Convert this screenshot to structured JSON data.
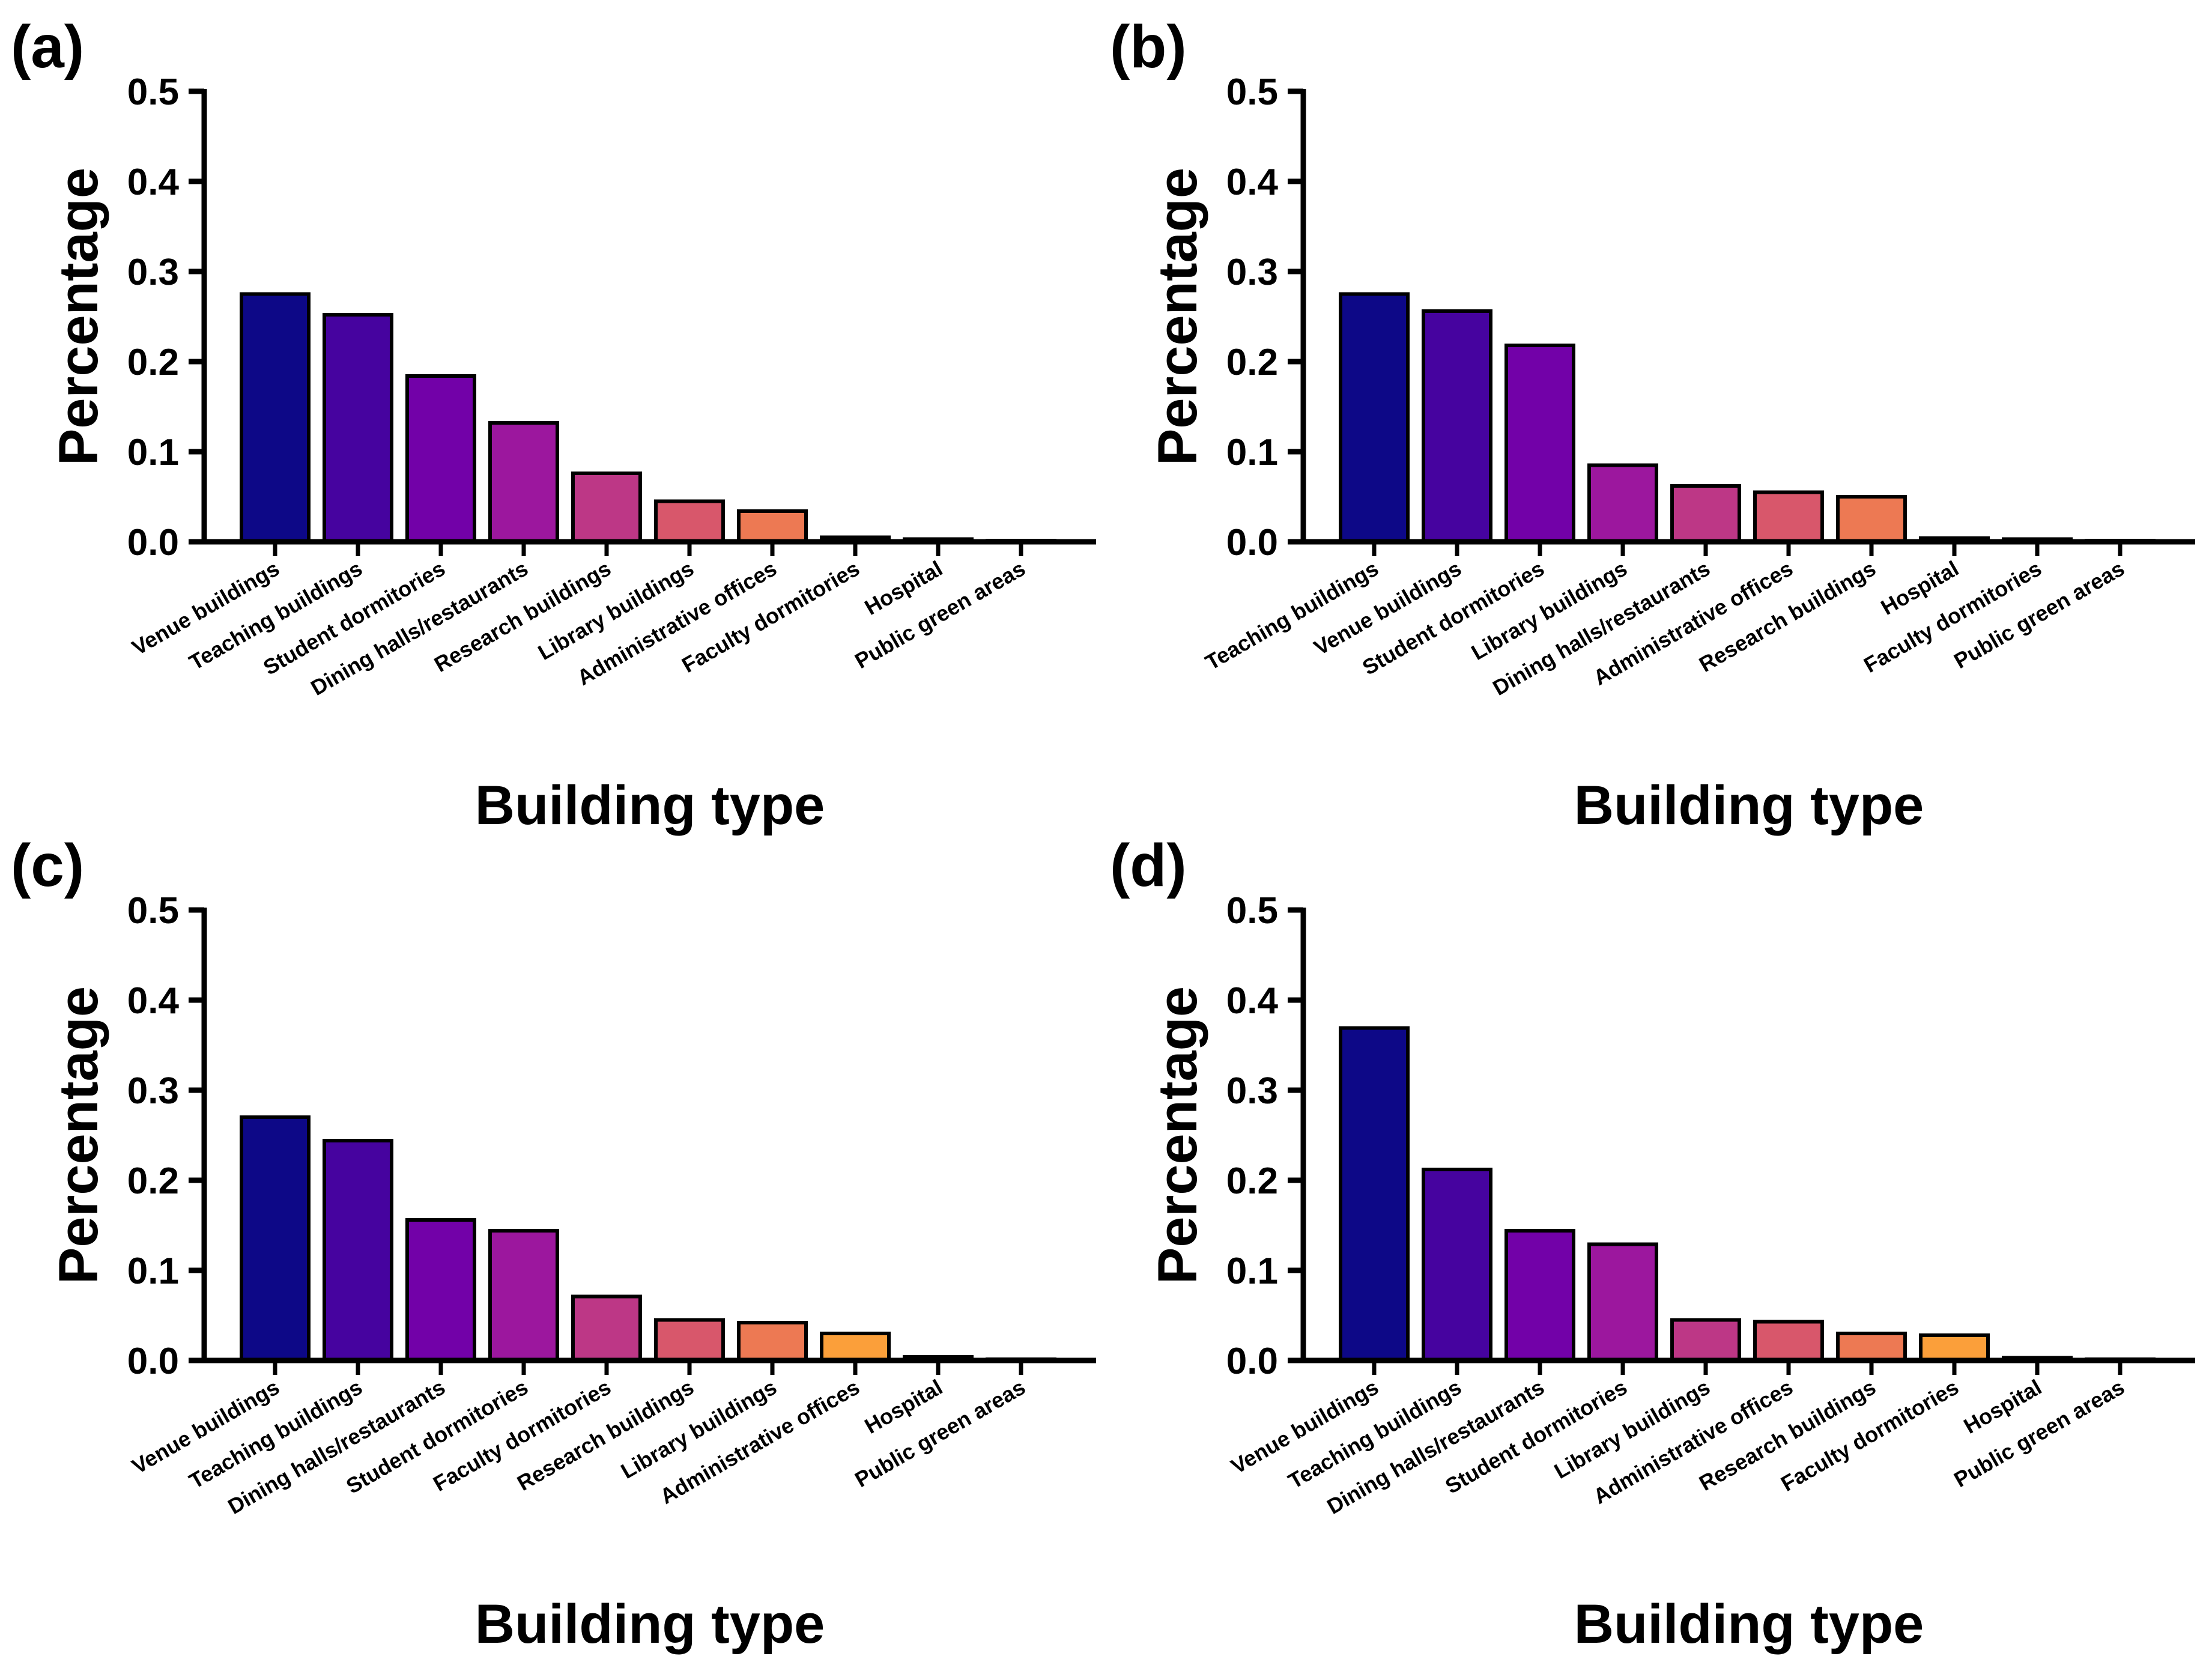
{
  "colors": {
    "palette": [
      "#0d0887",
      "#46039f",
      "#7201a8",
      "#9c179e",
      "#bd3786",
      "#d8576b",
      "#ed7953",
      "#fb9f3a",
      "#fdca26",
      "#f0f921"
    ],
    "edge": "#000000"
  },
  "chart_data": [
    {
      "panel": "(a)",
      "type": "bar",
      "ylabel": "Percentage",
      "xlabel": "Building type",
      "ylim": [
        0,
        0.5
      ],
      "yticks": [
        "0.0",
        "0.1",
        "0.2",
        "0.3",
        "0.4",
        "0.5"
      ],
      "categories": [
        "Venue buildings",
        "Teaching buildings",
        "Student dormitories",
        "Dining halls/restaurants",
        "Research buildings",
        "Library buildings",
        "Administrative offices",
        "Faculty dormitories",
        "Hospital",
        "Public green areas"
      ],
      "values": [
        0.275,
        0.252,
        0.184,
        0.132,
        0.076,
        0.045,
        0.034,
        0.005,
        0.003,
        0.001
      ]
    },
    {
      "panel": "(b)",
      "type": "bar",
      "ylabel": "Percentage",
      "xlabel": "Building type",
      "ylim": [
        0,
        0.5
      ],
      "yticks": [
        "0.0",
        "0.1",
        "0.2",
        "0.3",
        "0.4",
        "0.5"
      ],
      "categories": [
        "Teaching buildings",
        "Venue buildings",
        "Student dormitories",
        "Library buildings",
        "Dining halls/restaurants",
        "Administrative offices",
        "Research buildings",
        "Hospital",
        "Faculty dormitories",
        "Public green areas"
      ],
      "values": [
        0.275,
        0.256,
        0.218,
        0.085,
        0.062,
        0.055,
        0.05,
        0.004,
        0.003,
        0.001
      ]
    },
    {
      "panel": "(c)",
      "type": "bar",
      "ylabel": "Percentage",
      "xlabel": "Building type",
      "ylim": [
        0,
        0.5
      ],
      "yticks": [
        "0.0",
        "0.1",
        "0.2",
        "0.3",
        "0.4",
        "0.5"
      ],
      "categories": [
        "Venue buildings",
        "Teaching buildings",
        "Dining halls/restaurants",
        "Student dormitories",
        "Faculty dormitories",
        "Research buildings",
        "Library buildings",
        "Administrative offices",
        "Hospital",
        "Public green areas"
      ],
      "values": [
        0.27,
        0.244,
        0.156,
        0.144,
        0.071,
        0.045,
        0.042,
        0.03,
        0.004,
        0.001
      ]
    },
    {
      "panel": "(d)",
      "type": "bar",
      "ylabel": "Percentage",
      "xlabel": "Building type",
      "ylim": [
        0,
        0.5
      ],
      "yticks": [
        "0.0",
        "0.1",
        "0.2",
        "0.3",
        "0.4",
        "0.5"
      ],
      "categories": [
        "Venue buildings",
        "Teaching buildings",
        "Dining halls/restaurants",
        "Student dormitories",
        "Library buildings",
        "Administrative offices",
        "Research buildings",
        "Faculty dormitories",
        "Hospital",
        "Public green areas"
      ],
      "values": [
        0.369,
        0.212,
        0.144,
        0.129,
        0.045,
        0.043,
        0.03,
        0.028,
        0.003,
        0.001
      ]
    }
  ]
}
